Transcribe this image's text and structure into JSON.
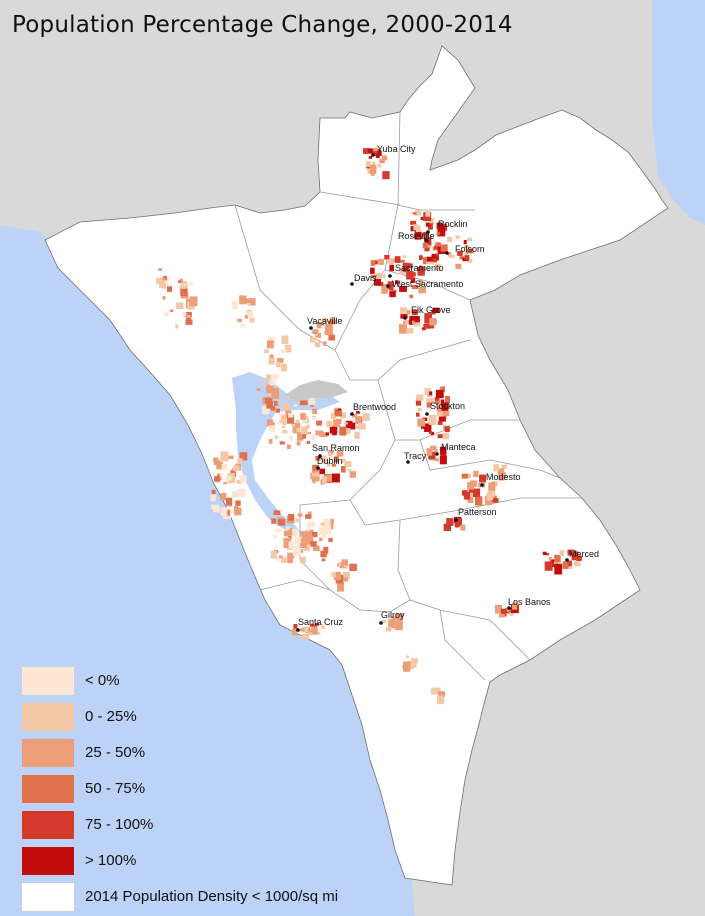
{
  "title": "Population Percentage Change, 2000-2014",
  "colors": {
    "ocean": "#bcd3f7",
    "outside_land": "#d9d9d9",
    "region_land": "#ffffff",
    "county_border": "#9a9a9a",
    "water_bodies": "#c8c8c8"
  },
  "cities": [
    "Yuba City",
    "Rocklin",
    "Roseville",
    "Folsom",
    "Sacramento",
    "Davis",
    "West Sacramento",
    "Elk Grove",
    "Vacaville",
    "Brentwood",
    "Stockton",
    "San Ramon",
    "Manteca",
    "Dublin",
    "Tracy",
    "Modesto",
    "Patterson",
    "Merced",
    "Los Banos",
    "Gilroy",
    "Santa Cruz"
  ],
  "legend": [
    {
      "label": "< 0%",
      "color": "#fde7d4"
    },
    {
      "label": "0 - 25%",
      "color": "#f4c7a7"
    },
    {
      "label": "25 - 50%",
      "color": "#ec9e79"
    },
    {
      "label": "50 - 75%",
      "color": "#e06f4e"
    },
    {
      "label": "75 - 100%",
      "color": "#d33a2c"
    },
    {
      "label": "> 100%",
      "color": "#c30c0c"
    },
    {
      "label": "2014 Population Density < 1000/sq mi",
      "color": "#ffffff"
    }
  ]
}
